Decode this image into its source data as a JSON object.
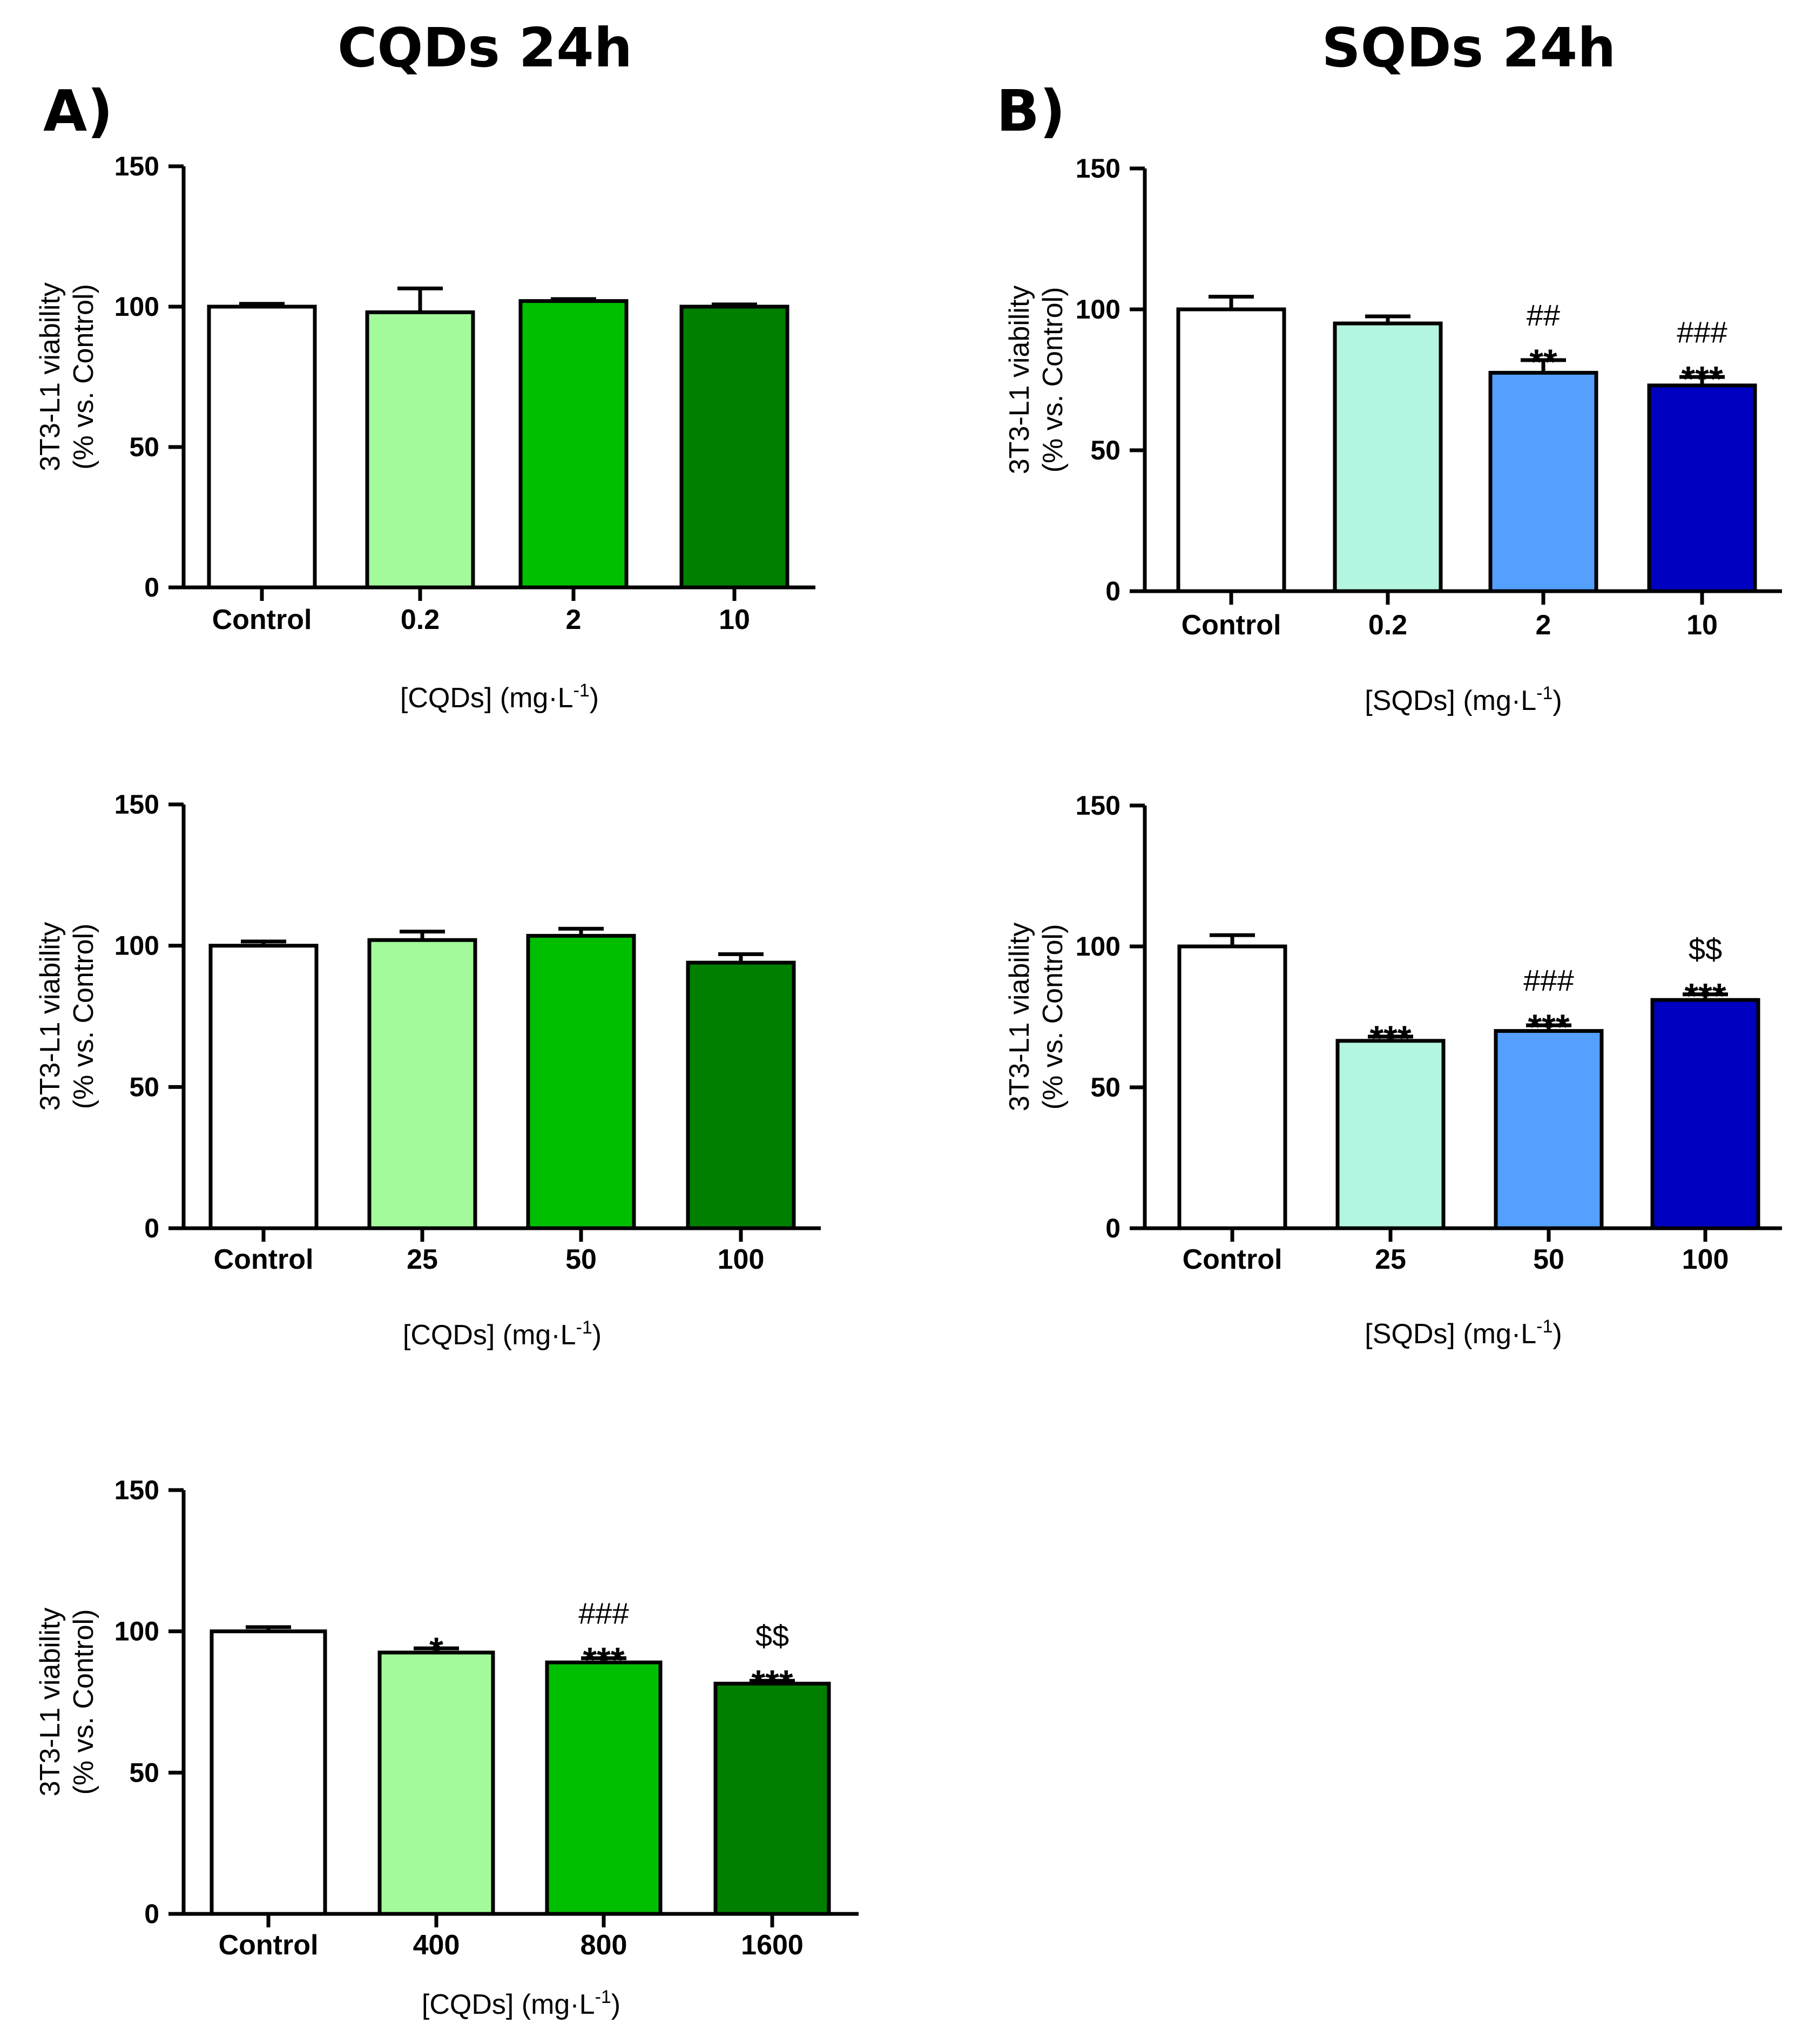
{
  "figure": {
    "col_titles": [
      "CQDs 24h",
      "SQDs 24h"
    ],
    "panel_labels": [
      "A)",
      "B)"
    ]
  },
  "chart_data": [
    {
      "type": "bar",
      "id": "cqds-low",
      "categories": [
        "Control",
        "0.2",
        "2",
        "10"
      ],
      "values": [
        100,
        98,
        102,
        100
      ],
      "errors": [
        1,
        8.5,
        0.7,
        0.8
      ],
      "colors": [
        "#ffffff",
        "#a3fa9b",
        "#00bf00",
        "#007f00"
      ],
      "annotations": [
        [],
        [],
        [],
        []
      ],
      "ylabel_lines": [
        "3T3-L1 viability",
        "(% vs. Control)"
      ],
      "xlabel": "[CQDs] (mg·L",
      "xlabel_sup": "-1",
      "xlabel_end": ")",
      "ylim": [
        0,
        150
      ],
      "yticks": [
        0,
        50,
        100,
        150
      ]
    },
    {
      "type": "bar",
      "id": "sqds-low",
      "categories": [
        "Control",
        "0.2",
        "2",
        "10"
      ],
      "values": [
        100,
        95,
        77.5,
        73
      ],
      "errors": [
        4.5,
        2.5,
        4.5,
        3
      ],
      "colors": [
        "#ffffff",
        "#b3f5e0",
        "#55a0ff",
        "#0000c0"
      ],
      "annotations": [
        [],
        [],
        [
          "**",
          "##"
        ],
        [
          "***",
          "###"
        ]
      ],
      "ylabel_lines": [
        "3T3-L1 viability",
        "(% vs. Control)"
      ],
      "xlabel": "[SQDs] (mg·L",
      "xlabel_sup": "-1",
      "xlabel_end": ")",
      "ylim": [
        0,
        150
      ],
      "yticks": [
        0,
        50,
        100,
        150
      ]
    },
    {
      "type": "bar",
      "id": "cqds-mid",
      "categories": [
        "Control",
        "25",
        "50",
        "100"
      ],
      "values": [
        100,
        102,
        103.5,
        94
      ],
      "errors": [
        1.5,
        3,
        2.5,
        3
      ],
      "colors": [
        "#ffffff",
        "#a3fa9b",
        "#00bf00",
        "#007f00"
      ],
      "annotations": [
        [],
        [],
        [],
        []
      ],
      "ylabel_lines": [
        "3T3-L1 viability",
        "(% vs. Control)"
      ],
      "xlabel": "[CQDs] (mg·L",
      "xlabel_sup": "-1",
      "xlabel_end": ")",
      "ylim": [
        0,
        150
      ],
      "yticks": [
        0,
        50,
        100,
        150
      ]
    },
    {
      "type": "bar",
      "id": "sqds-high",
      "categories": [
        "Control",
        "25",
        "50",
        "100"
      ],
      "values": [
        100,
        66.5,
        70,
        81
      ],
      "errors": [
        4,
        1.5,
        2,
        2
      ],
      "colors": [
        "#ffffff",
        "#b3f5e0",
        "#55a0ff",
        "#0000c0"
      ],
      "annotations": [
        [],
        [
          "***"
        ],
        [
          "***",
          "###"
        ],
        [
          "***",
          "$$"
        ]
      ],
      "ylabel_lines": [
        "3T3-L1 viability",
        "(% vs. Control)"
      ],
      "xlabel": "[SQDs] (mg·L",
      "xlabel_sup": "-1",
      "xlabel_end": ")",
      "ylim": [
        0,
        150
      ],
      "yticks": [
        0,
        50,
        100,
        150
      ]
    },
    {
      "type": "bar",
      "id": "cqds-high",
      "categories": [
        "Control",
        "400",
        "800",
        "1600"
      ],
      "values": [
        100,
        92.5,
        89,
        81.5
      ],
      "errors": [
        1.5,
        1.5,
        1.5,
        1
      ],
      "colors": [
        "#ffffff",
        "#a3fa9b",
        "#00bf00",
        "#007f00"
      ],
      "annotations": [
        [],
        [
          "*"
        ],
        [
          "***",
          "###"
        ],
        [
          "***",
          "$$"
        ]
      ],
      "ylabel_lines": [
        "3T3-L1 viability",
        "(% vs. Control)"
      ],
      "xlabel": "[CQDs] (mg·L",
      "xlabel_sup": "-1",
      "xlabel_end": ")",
      "ylim": [
        0,
        150
      ],
      "yticks": [
        0,
        50,
        100,
        150
      ]
    }
  ]
}
